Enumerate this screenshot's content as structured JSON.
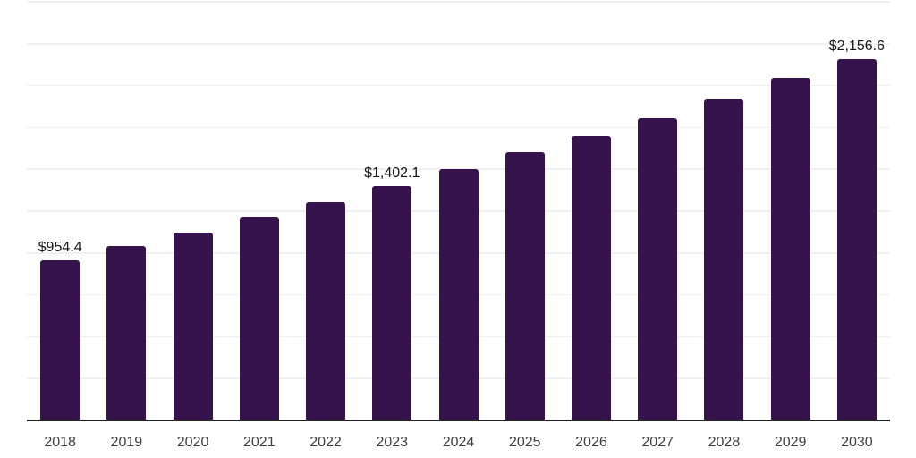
{
  "chart_data": {
    "type": "bar",
    "title": "",
    "xlabel": "",
    "ylabel": "",
    "categories": [
      "2018",
      "2019",
      "2020",
      "2021",
      "2022",
      "2023",
      "2024",
      "2025",
      "2026",
      "2027",
      "2028",
      "2029",
      "2030"
    ],
    "values": [
      954.4,
      1040,
      1124,
      1215,
      1305,
      1402.1,
      1500,
      1600,
      1701,
      1805,
      1920,
      2044,
      2156.6
    ],
    "labeled_points": [
      {
        "index": 0,
        "text": "$954.4"
      },
      {
        "index": 5,
        "text": "$1,402.1"
      },
      {
        "index": 12,
        "text": "$2,156.6"
      }
    ],
    "ylim": [
      0,
      2500
    ],
    "gridline_interval": 250,
    "grid": true,
    "legend": "none",
    "colors": {
      "bar": "#37134e",
      "grid": "#f0f0f0",
      "axis": "#262626",
      "value_label": "#141414",
      "tick_label": "#3d3d3d",
      "background": "#ffffff"
    }
  }
}
